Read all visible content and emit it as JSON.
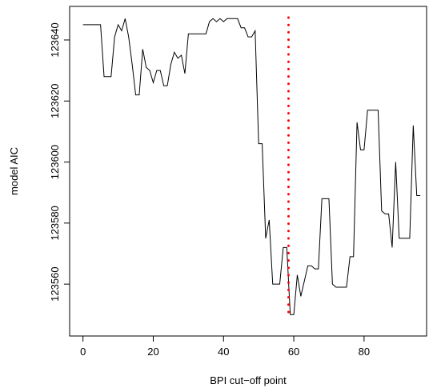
{
  "chart_data": {
    "type": "line",
    "x_label": "BPI cut−off point",
    "y_label": "model AIC",
    "x": [
      0,
      1,
      2,
      3,
      4,
      5,
      6,
      7,
      8,
      9,
      10,
      11,
      12,
      13,
      14,
      15,
      16,
      17,
      18,
      19,
      20,
      21,
      22,
      23,
      24,
      25,
      26,
      27,
      28,
      29,
      30,
      31,
      32,
      33,
      34,
      35,
      36,
      37,
      38,
      39,
      40,
      41,
      42,
      43,
      44,
      45,
      46,
      47,
      48,
      49,
      50,
      51,
      52,
      53,
      54,
      55,
      56,
      57,
      58,
      59,
      60,
      61,
      62,
      63,
      64,
      65,
      66,
      67,
      68,
      69,
      70,
      71,
      72,
      73,
      74,
      75,
      76,
      77,
      78,
      79,
      80,
      81,
      82,
      83,
      84,
      85,
      86,
      87,
      88,
      89,
      90,
      91,
      92,
      93,
      94,
      95,
      96
    ],
    "series": [
      {
        "color": "#000000",
        "values": [
          123645,
          123645,
          123645,
          123645,
          123645,
          123645,
          123628,
          123628,
          123628,
          123641,
          123645,
          123643,
          123647,
          123641,
          123632,
          123622,
          123622,
          123637,
          123631,
          123630,
          123626,
          123630,
          123630,
          123625,
          123625,
          123632,
          123636,
          123634,
          123635,
          123629,
          123642,
          123642,
          123642,
          123642,
          123642,
          123642,
          123646,
          123647,
          123646,
          123647,
          123646,
          123647,
          123647,
          123647,
          123647,
          123644,
          123644,
          123641,
          123641,
          123643,
          123606,
          123606,
          123575,
          123581,
          123560,
          123560,
          123560,
          123572,
          123572,
          123550,
          123550,
          123563,
          123556,
          123561,
          123566,
          123566,
          123565,
          123565,
          123588,
          123588,
          123588,
          123560,
          123559,
          123559,
          123559,
          123559,
          123569,
          123569,
          123613,
          123604,
          123604,
          123617,
          123617,
          123617,
          123617,
          123584,
          123583,
          123583,
          123572,
          123600,
          123575,
          123575,
          123575,
          123575,
          123612,
          123589,
          123589
        ]
      }
    ],
    "vline": {
      "x": 58.5,
      "color": "#ff0000"
    },
    "xlim": [
      -3.8,
      97.8
    ],
    "ylim": [
      123543,
      123651
    ],
    "xticks": [
      0,
      20,
      40,
      60,
      80
    ],
    "yticks": [
      123560,
      123580,
      123600,
      123620,
      123640
    ]
  }
}
